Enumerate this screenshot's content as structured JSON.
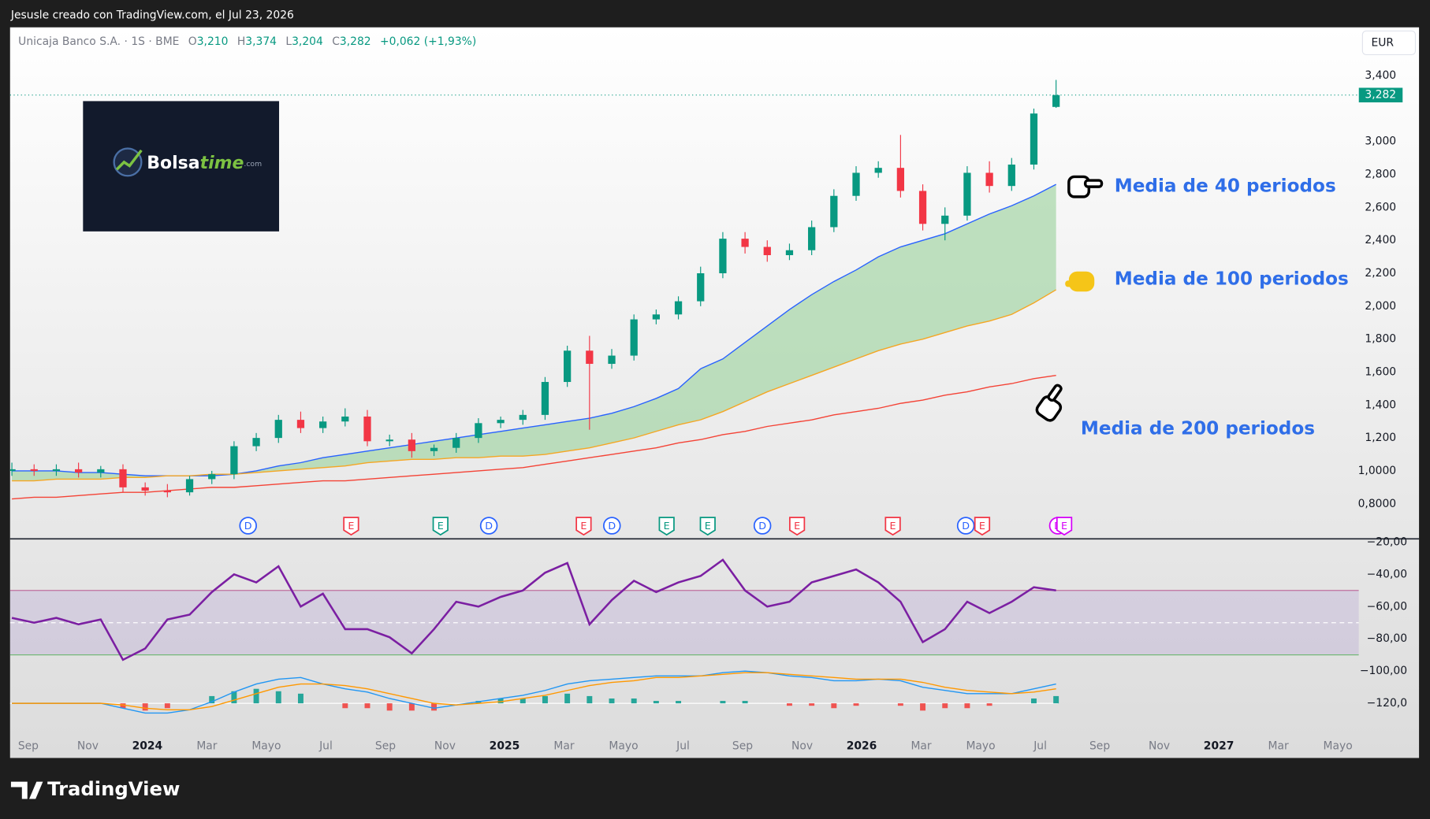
{
  "header": {
    "credit": "Jesusle creado con TradingView.com, el Jul 23, 2026",
    "symbol": "Unicaja Banco S.A. · 1S · BME",
    "ohlc": [
      {
        "k": "O",
        "v": "3,210"
      },
      {
        "k": "H",
        "v": "3,374"
      },
      {
        "k": "L",
        "v": "3,204"
      },
      {
        "k": "C",
        "v": "3,282"
      }
    ],
    "change": "+0,062 (+1,93%)",
    "currency": "EUR"
  },
  "logo": {
    "a": "Bolsa",
    "b": "time",
    "c": ".com"
  },
  "footer": "TradingView",
  "events": [
    {
      "label": "D",
      "color": "#2962ff"
    },
    {
      "label": "E",
      "color": "#f23645"
    },
    {
      "label": "E",
      "color": "#089981"
    },
    {
      "label": "D",
      "color": "#2962ff"
    },
    {
      "label": "E",
      "color": "#f23645"
    },
    {
      "label": "D",
      "color": "#2962ff"
    },
    {
      "label": "E",
      "color": "#089981"
    },
    {
      "label": "E",
      "color": "#089981"
    },
    {
      "label": "D",
      "color": "#2962ff"
    },
    {
      "label": "E",
      "color": "#f23645"
    },
    {
      "label": "E",
      "color": "#f23645"
    },
    {
      "label": "D",
      "color": "#2962ff"
    },
    {
      "label": "E",
      "color": "#f23645"
    },
    {
      "label": "D",
      "color": "#d500f9"
    },
    {
      "label": "E",
      "color": "#d500f9"
    }
  ],
  "chart_data": [
    {
      "type": "candlestick",
      "up_color": "#089981",
      "down_color": "#f23645",
      "open": [
        1.0,
        1.01,
        1.0,
        1.01,
        0.99,
        1.01,
        0.9,
        0.88,
        0.87,
        0.95,
        0.98,
        1.15,
        1.2,
        1.31,
        1.26,
        1.3,
        1.33,
        1.18,
        1.19,
        1.12,
        1.14,
        1.2,
        1.29,
        1.31,
        1.34,
        1.54,
        1.73,
        1.65,
        1.7,
        1.92,
        1.95,
        2.03,
        2.2,
        2.41,
        2.36,
        2.31,
        2.34,
        2.48,
        2.67,
        2.81,
        2.84,
        2.7,
        2.5,
        2.55,
        2.81,
        2.73,
        2.86,
        3.21
      ],
      "high": [
        1.05,
        1.04,
        1.04,
        1.05,
        1.03,
        1.04,
        0.93,
        0.92,
        0.97,
        1.0,
        1.18,
        1.23,
        1.34,
        1.36,
        1.33,
        1.38,
        1.37,
        1.22,
        1.23,
        1.16,
        1.23,
        1.32,
        1.33,
        1.37,
        1.57,
        1.76,
        1.82,
        1.74,
        1.95,
        1.98,
        2.06,
        2.24,
        2.45,
        2.45,
        2.4,
        2.38,
        2.52,
        2.71,
        2.85,
        2.88,
        3.04,
        2.74,
        2.6,
        2.85,
        2.88,
        2.9,
        3.2,
        3.374
      ],
      "low": [
        0.97,
        0.97,
        0.97,
        0.96,
        0.96,
        0.87,
        0.85,
        0.84,
        0.85,
        0.92,
        0.95,
        1.12,
        1.17,
        1.23,
        1.23,
        1.27,
        1.15,
        1.15,
        1.08,
        1.09,
        1.11,
        1.17,
        1.26,
        1.28,
        1.31,
        1.51,
        1.25,
        1.62,
        1.67,
        1.89,
        1.92,
        2.0,
        2.17,
        2.32,
        2.27,
        2.28,
        2.31,
        2.45,
        2.64,
        2.78,
        2.66,
        2.46,
        2.4,
        2.52,
        2.69,
        2.7,
        2.83,
        3.204
      ],
      "close": [
        1.01,
        1.0,
        1.01,
        0.99,
        1.01,
        0.9,
        0.88,
        0.87,
        0.95,
        0.98,
        1.15,
        1.2,
        1.31,
        1.26,
        1.3,
        1.33,
        1.18,
        1.19,
        1.12,
        1.14,
        1.2,
        1.29,
        1.31,
        1.34,
        1.54,
        1.73,
        1.65,
        1.7,
        1.92,
        1.95,
        2.03,
        2.2,
        2.41,
        2.36,
        2.31,
        2.34,
        2.48,
        2.67,
        2.81,
        2.84,
        2.7,
        2.5,
        2.55,
        2.81,
        2.73,
        2.86,
        3.17,
        3.282
      ],
      "last_label": "3,282",
      "last_color": "#089981",
      "ylim": [
        0.6,
        3.7
      ],
      "yticks": [
        {
          "value": 0.8,
          "label": "0,8000"
        },
        {
          "value": 1.0,
          "label": "1,0000"
        },
        {
          "value": 1.2,
          "label": "1,200"
        },
        {
          "value": 1.4,
          "label": "1,400"
        },
        {
          "value": 1.6,
          "label": "1,600"
        },
        {
          "value": 1.8,
          "label": "1,800"
        },
        {
          "value": 2.0,
          "label": "2,000"
        },
        {
          "value": 2.2,
          "label": "2,200"
        },
        {
          "value": 2.4,
          "label": "2,400"
        },
        {
          "value": 2.6,
          "label": "2,600"
        },
        {
          "value": 2.8,
          "label": "2,800"
        },
        {
          "value": 3.0,
          "label": "3,000"
        },
        {
          "value": 3.4,
          "label": "3,400"
        }
      ],
      "x_labels": [
        "Sep",
        "Nov",
        "2024",
        "Mar",
        "Mayo",
        "Jul",
        "Sep",
        "Nov",
        "2025",
        "Mar",
        "Mayo",
        "Jul",
        "Sep",
        "Nov",
        "2026",
        "Mar",
        "Mayo",
        "Jul",
        "Sep",
        "Nov",
        "2027",
        "Mar",
        "Mayo"
      ],
      "fill_color": "#a5d6a7",
      "lines": [
        {
          "name": "Media de 40 periodos",
          "color": "#2962ff",
          "values": [
            1.0,
            1.0,
            1.0,
            0.99,
            0.99,
            0.98,
            0.97,
            0.97,
            0.97,
            0.97,
            0.98,
            1.0,
            1.03,
            1.05,
            1.08,
            1.1,
            1.12,
            1.14,
            1.16,
            1.18,
            1.2,
            1.22,
            1.24,
            1.26,
            1.28,
            1.3,
            1.32,
            1.35,
            1.39,
            1.44,
            1.5,
            1.62,
            1.68,
            1.78,
            1.88,
            1.98,
            2.07,
            2.15,
            2.22,
            2.3,
            2.36,
            2.4,
            2.44,
            2.5,
            2.56,
            2.61,
            2.67,
            2.74
          ]
        },
        {
          "name": "Media de 100 periodos",
          "color": "#f5a623",
          "values": [
            0.94,
            0.94,
            0.95,
            0.95,
            0.95,
            0.96,
            0.96,
            0.97,
            0.97,
            0.98,
            0.98,
            0.99,
            1.0,
            1.01,
            1.02,
            1.03,
            1.05,
            1.06,
            1.07,
            1.07,
            1.08,
            1.08,
            1.09,
            1.09,
            1.1,
            1.12,
            1.14,
            1.17,
            1.2,
            1.24,
            1.28,
            1.31,
            1.36,
            1.42,
            1.48,
            1.53,
            1.58,
            1.63,
            1.68,
            1.73,
            1.77,
            1.8,
            1.84,
            1.88,
            1.91,
            1.95,
            2.02,
            2.1
          ]
        },
        {
          "name": "Media de 200 periodos",
          "color": "#f44336",
          "values": [
            0.83,
            0.84,
            0.84,
            0.85,
            0.86,
            0.87,
            0.87,
            0.88,
            0.89,
            0.9,
            0.9,
            0.91,
            0.92,
            0.93,
            0.94,
            0.94,
            0.95,
            0.96,
            0.97,
            0.98,
            0.99,
            1.0,
            1.01,
            1.02,
            1.04,
            1.06,
            1.08,
            1.1,
            1.12,
            1.14,
            1.17,
            1.19,
            1.22,
            1.24,
            1.27,
            1.29,
            1.31,
            1.34,
            1.36,
            1.38,
            1.41,
            1.43,
            1.46,
            1.48,
            1.51,
            1.53,
            1.56,
            1.58
          ]
        }
      ]
    },
    {
      "type": "oscillator",
      "ylim": [
        -138,
        -18
      ],
      "yticks": [
        {
          "value": -20,
          "label": "−20,00"
        },
        {
          "value": -40,
          "label": "−40,00"
        },
        {
          "value": -60,
          "label": "−60,00"
        },
        {
          "value": -80,
          "label": "−80,00"
        },
        {
          "value": -100,
          "label": "−100,00"
        },
        {
          "value": -120,
          "label": "−120,0"
        }
      ],
      "band": [
        -50,
        -90
      ],
      "band_mid": -70,
      "band_color": "#7e57c2",
      "series": [
        {
          "color": "#7b1fa2",
          "values": [
            -67,
            -70,
            -67,
            -71,
            -68,
            -93,
            -86,
            -68,
            -65,
            -51,
            -40,
            -45,
            -35,
            -60,
            -52,
            -74,
            -74,
            -79,
            -89,
            -74,
            -57,
            -60,
            -54,
            -50,
            -39,
            -33,
            -71,
            -56,
            -44,
            -51,
            -45,
            -41,
            -31,
            -50,
            -60,
            -57,
            -45,
            -41,
            -37,
            -45,
            -57,
            -82,
            -74,
            -57,
            -64,
            -57,
            -48,
            -50
          ]
        },
        {
          "color": "#2196f3",
          "values": [
            -120,
            -120,
            -120,
            -120,
            -120,
            -123,
            -126,
            -126,
            -124,
            -119,
            -113,
            -108,
            -105,
            -104,
            -108,
            -111,
            -113,
            -117,
            -120,
            -123,
            -121,
            -119,
            -117,
            -115,
            -112,
            -108,
            -106,
            -105,
            -104,
            -103,
            -103,
            -103,
            -101,
            -100,
            -101,
            -103,
            -104,
            -106,
            -106,
            -105,
            -106,
            -110,
            -112,
            -114,
            -114,
            -114,
            -111,
            -108
          ]
        },
        {
          "color": "#ff9800",
          "values": [
            -120,
            -120,
            -120,
            -120,
            -120,
            -121,
            -123,
            -124,
            -124,
            -122,
            -118,
            -114,
            -110,
            -108,
            -108,
            -109,
            -111,
            -114,
            -117,
            -120,
            -121,
            -120,
            -119,
            -117,
            -115,
            -112,
            -109,
            -107,
            -106,
            -104,
            -104,
            -103,
            -102,
            -101,
            -101,
            -102,
            -103,
            -104,
            -105,
            -105,
            -105,
            -107,
            -110,
            -112,
            -113,
            -114,
            -113,
            -111
          ]
        }
      ],
      "histogram": {
        "zero_line": -120,
        "up_color": "#26a69a",
        "down_color": "#ef5350",
        "values": [
          -120,
          -120,
          -120,
          -120,
          -120,
          -123,
          -124.5,
          -123,
          -120,
          -115.5,
          -112.5,
          -111,
          -112.5,
          -114,
          -120,
          -123,
          -123,
          -124.5,
          -124.5,
          -124.5,
          -120,
          -118.5,
          -117,
          -117,
          -115.5,
          -114,
          -115.5,
          -117,
          -117,
          -118.5,
          -118.5,
          -120,
          -118.5,
          -118.5,
          -120,
          -121.5,
          -121.5,
          -123,
          -121.5,
          -120,
          -121.5,
          -124.5,
          -123,
          -123,
          -121.5,
          -120,
          -117,
          -115.5
        ]
      }
    }
  ]
}
